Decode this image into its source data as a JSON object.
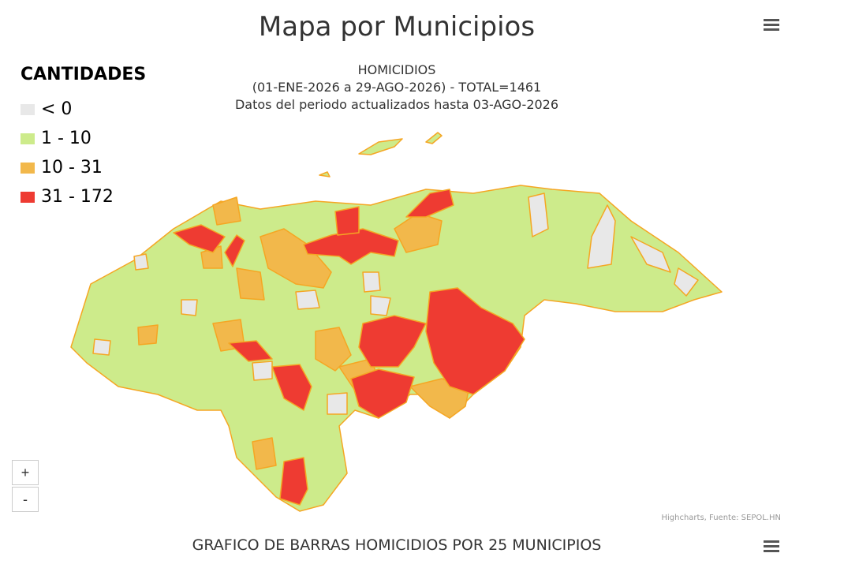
{
  "header": {
    "title": "Mapa por Municipios"
  },
  "map": {
    "subtitle": [
      "HOMICIDIOS",
      "(01-ENE-2026 a 29-AGO-2026) - TOTAL=1461",
      "Datos del periodo actualizados hasta 03-AGO-2026"
    ],
    "legend": {
      "title": "CANTIDADES",
      "items": [
        {
          "label": "< 0",
          "color": "#e8e8e8"
        },
        {
          "label": "1 - 10",
          "color": "#cdeb8b"
        },
        {
          "label": "10 - 31",
          "color": "#f2b84b"
        },
        {
          "label": "31 - 172",
          "color": "#ee3b32"
        }
      ]
    },
    "credits": "Highcharts, Fuente: SEPOL.HN",
    "zoom_in": "+",
    "zoom_out": "-"
  },
  "footer": {
    "title": "GRAFICO DE BARRAS HOMICIDIOS POR 25 MUNICIPIOS"
  }
}
